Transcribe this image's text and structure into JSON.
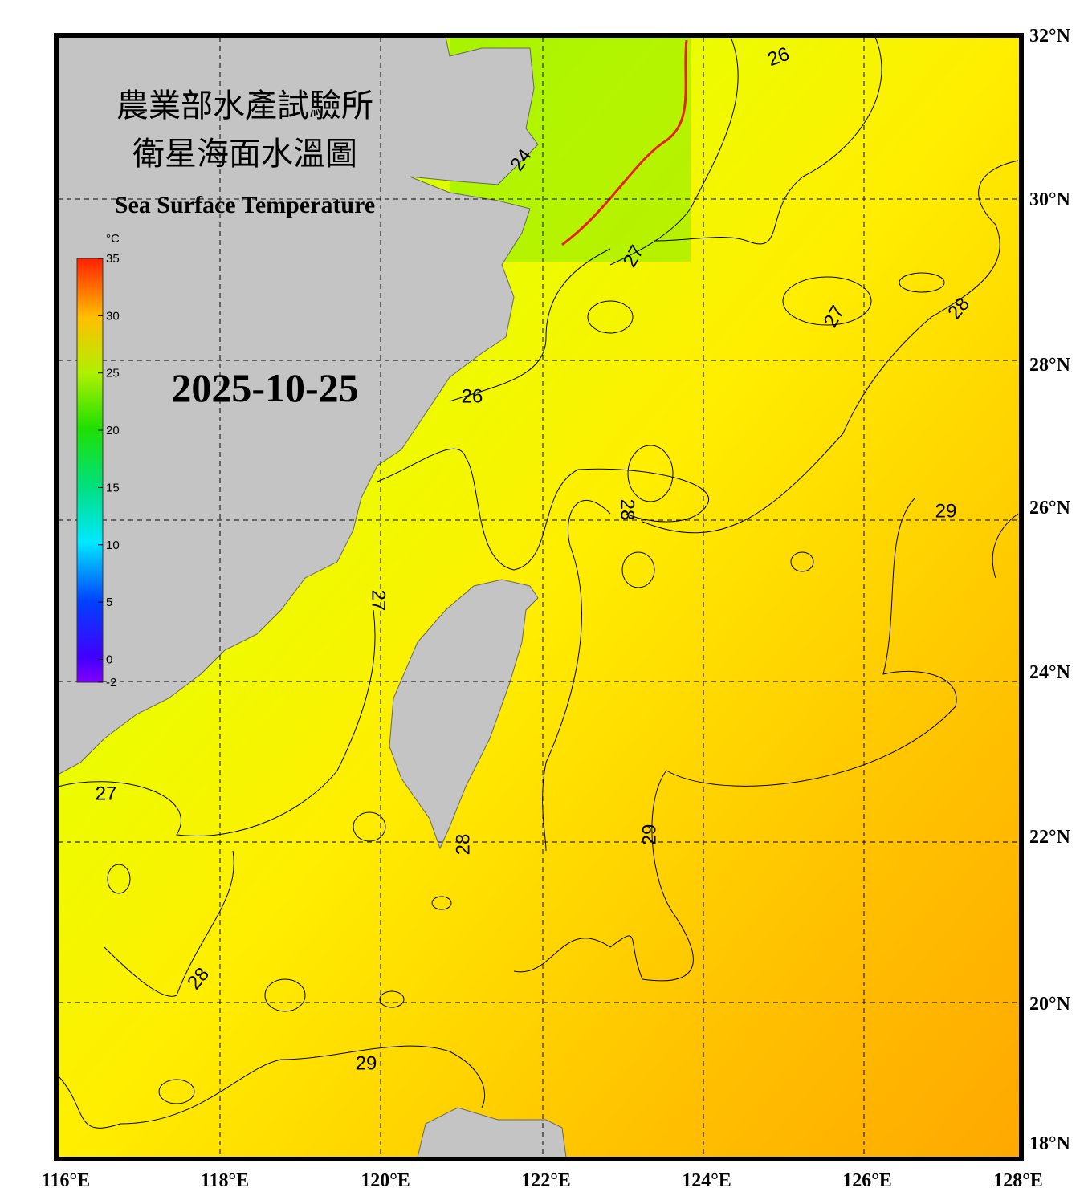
{
  "header": {
    "title_zh_1": "農業部水產試驗所",
    "title_zh_2": "衛星海面水溫圖",
    "title_en": "Sea Surface Temperature",
    "date": "2025-10-25"
  },
  "colorbar": {
    "unit": "°C",
    "range": [
      -2,
      35
    ],
    "ticks": [
      35,
      30,
      25,
      20,
      15,
      10,
      5,
      0,
      -2
    ]
  },
  "lat_labels": [
    "32°N",
    "30°N",
    "28°N",
    "26°N",
    "24°N",
    "22°N",
    "20°N",
    "18°N"
  ],
  "lon_labels": [
    "116°E",
    "118°E",
    "120°E",
    "122°E",
    "124°E",
    "126°E",
    "128°E"
  ],
  "contour_labels": [
    "26",
    "24",
    "27",
    "27",
    "28",
    "26",
    "28",
    "29",
    "27",
    "27",
    "28",
    "29",
    "28",
    "29"
  ]
}
